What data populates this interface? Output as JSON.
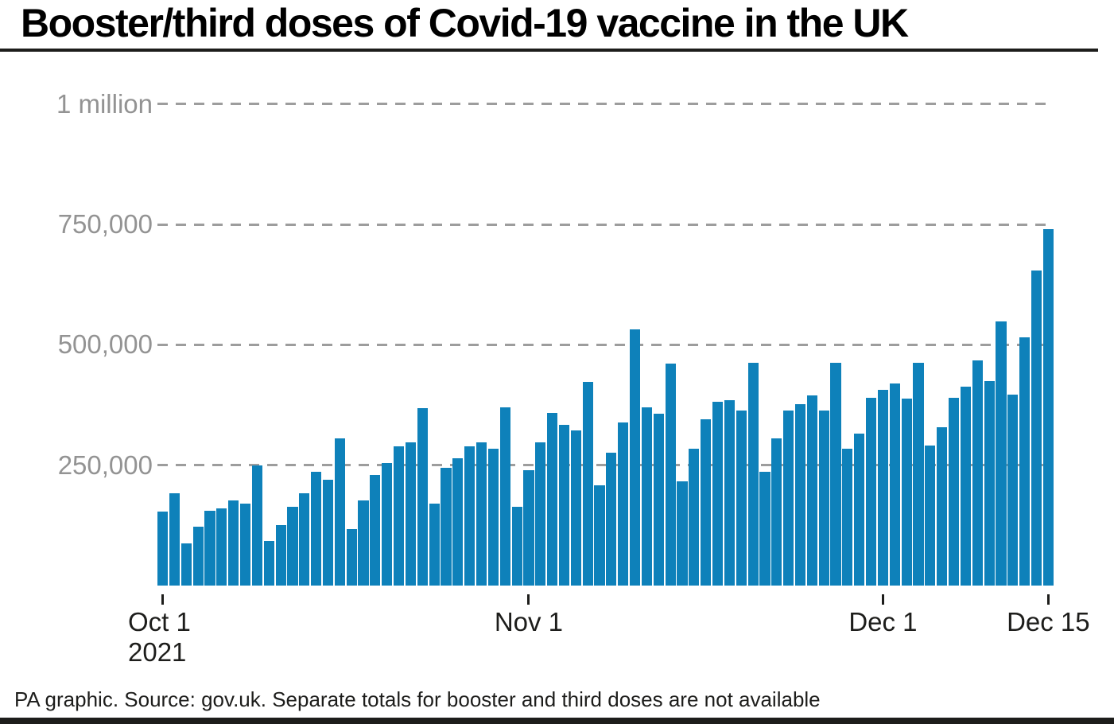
{
  "title": "Booster/third doses of Covid-19 vaccine in the UK",
  "footer": "PA graphic. Source: gov.uk. Separate totals for booster and third doses are not available",
  "colors": {
    "bar": "#0e81ba",
    "gridline": "#9d9d9d",
    "y_label": "#939393",
    "text": "#1d1d1b",
    "background": "#ffffff"
  },
  "chart_data": {
    "type": "bar",
    "title": "Booster/third doses of Covid-19 vaccine in the UK",
    "xlabel": "",
    "ylabel": "",
    "ylim": [
      0,
      1000000
    ],
    "grid": "horizontal-dashed",
    "legend": "none",
    "y_ticks": [
      {
        "label": "250,000",
        "value": 250000
      },
      {
        "label": "500,000",
        "value": 500000
      },
      {
        "label": "750,000",
        "value": 750000
      },
      {
        "label": "1 million",
        "value": 1000000
      }
    ],
    "x_ticks": [
      {
        "label": "Oct 1",
        "sublabel": "2021",
        "index": 0,
        "align": "left"
      },
      {
        "label": "Nov 1",
        "sublabel": "",
        "index": 31,
        "align": "center"
      },
      {
        "label": "Dec 1",
        "sublabel": "",
        "index": 61,
        "align": "center"
      },
      {
        "label": "Dec 15",
        "sublabel": "",
        "index": 75,
        "align": "center"
      }
    ],
    "categories": [
      "Oct 1",
      "Oct 2",
      "Oct 3",
      "Oct 4",
      "Oct 5",
      "Oct 6",
      "Oct 7",
      "Oct 8",
      "Oct 9",
      "Oct 10",
      "Oct 11",
      "Oct 12",
      "Oct 13",
      "Oct 14",
      "Oct 15",
      "Oct 16",
      "Oct 17",
      "Oct 18",
      "Oct 19",
      "Oct 20",
      "Oct 21",
      "Oct 22",
      "Oct 23",
      "Oct 24",
      "Oct 25",
      "Oct 26",
      "Oct 27",
      "Oct 28",
      "Oct 29",
      "Oct 30",
      "Oct 31",
      "Nov 1",
      "Nov 2",
      "Nov 3",
      "Nov 4",
      "Nov 5",
      "Nov 6",
      "Nov 7",
      "Nov 8",
      "Nov 9",
      "Nov 10",
      "Nov 11",
      "Nov 12",
      "Nov 13",
      "Nov 14",
      "Nov 15",
      "Nov 16",
      "Nov 17",
      "Nov 18",
      "Nov 19",
      "Nov 20",
      "Nov 21",
      "Nov 22",
      "Nov 23",
      "Nov 24",
      "Nov 25",
      "Nov 26",
      "Nov 27",
      "Nov 28",
      "Nov 29",
      "Nov 30",
      "Dec 1",
      "Dec 2",
      "Dec 3",
      "Dec 4",
      "Dec 5",
      "Dec 6",
      "Dec 7",
      "Dec 8",
      "Dec 9",
      "Dec 10",
      "Dec 11",
      "Dec 12",
      "Dec 13",
      "Dec 14",
      "Dec 15"
    ],
    "values": [
      153000,
      192000,
      88000,
      123000,
      156000,
      161000,
      176000,
      171000,
      250000,
      93000,
      125000,
      163000,
      192000,
      237000,
      220000,
      305000,
      118000,
      176000,
      230000,
      255000,
      289000,
      298000,
      369000,
      170000,
      244000,
      264000,
      289000,
      297000,
      284000,
      370000,
      163000,
      240000,
      297000,
      359000,
      333000,
      322000,
      423000,
      209000,
      276000,
      339000,
      532000,
      370000,
      357000,
      461000,
      216000,
      285000,
      346000,
      382000,
      385000,
      363000,
      462000,
      237000,
      306000,
      363000,
      377000,
      395000,
      364000,
      463000,
      284000,
      316000,
      390000,
      407000,
      420000,
      388000,
      463000,
      290000,
      328000,
      390000,
      413000,
      468000,
      425000,
      549000,
      396000,
      515000,
      655000,
      741000
    ]
  }
}
